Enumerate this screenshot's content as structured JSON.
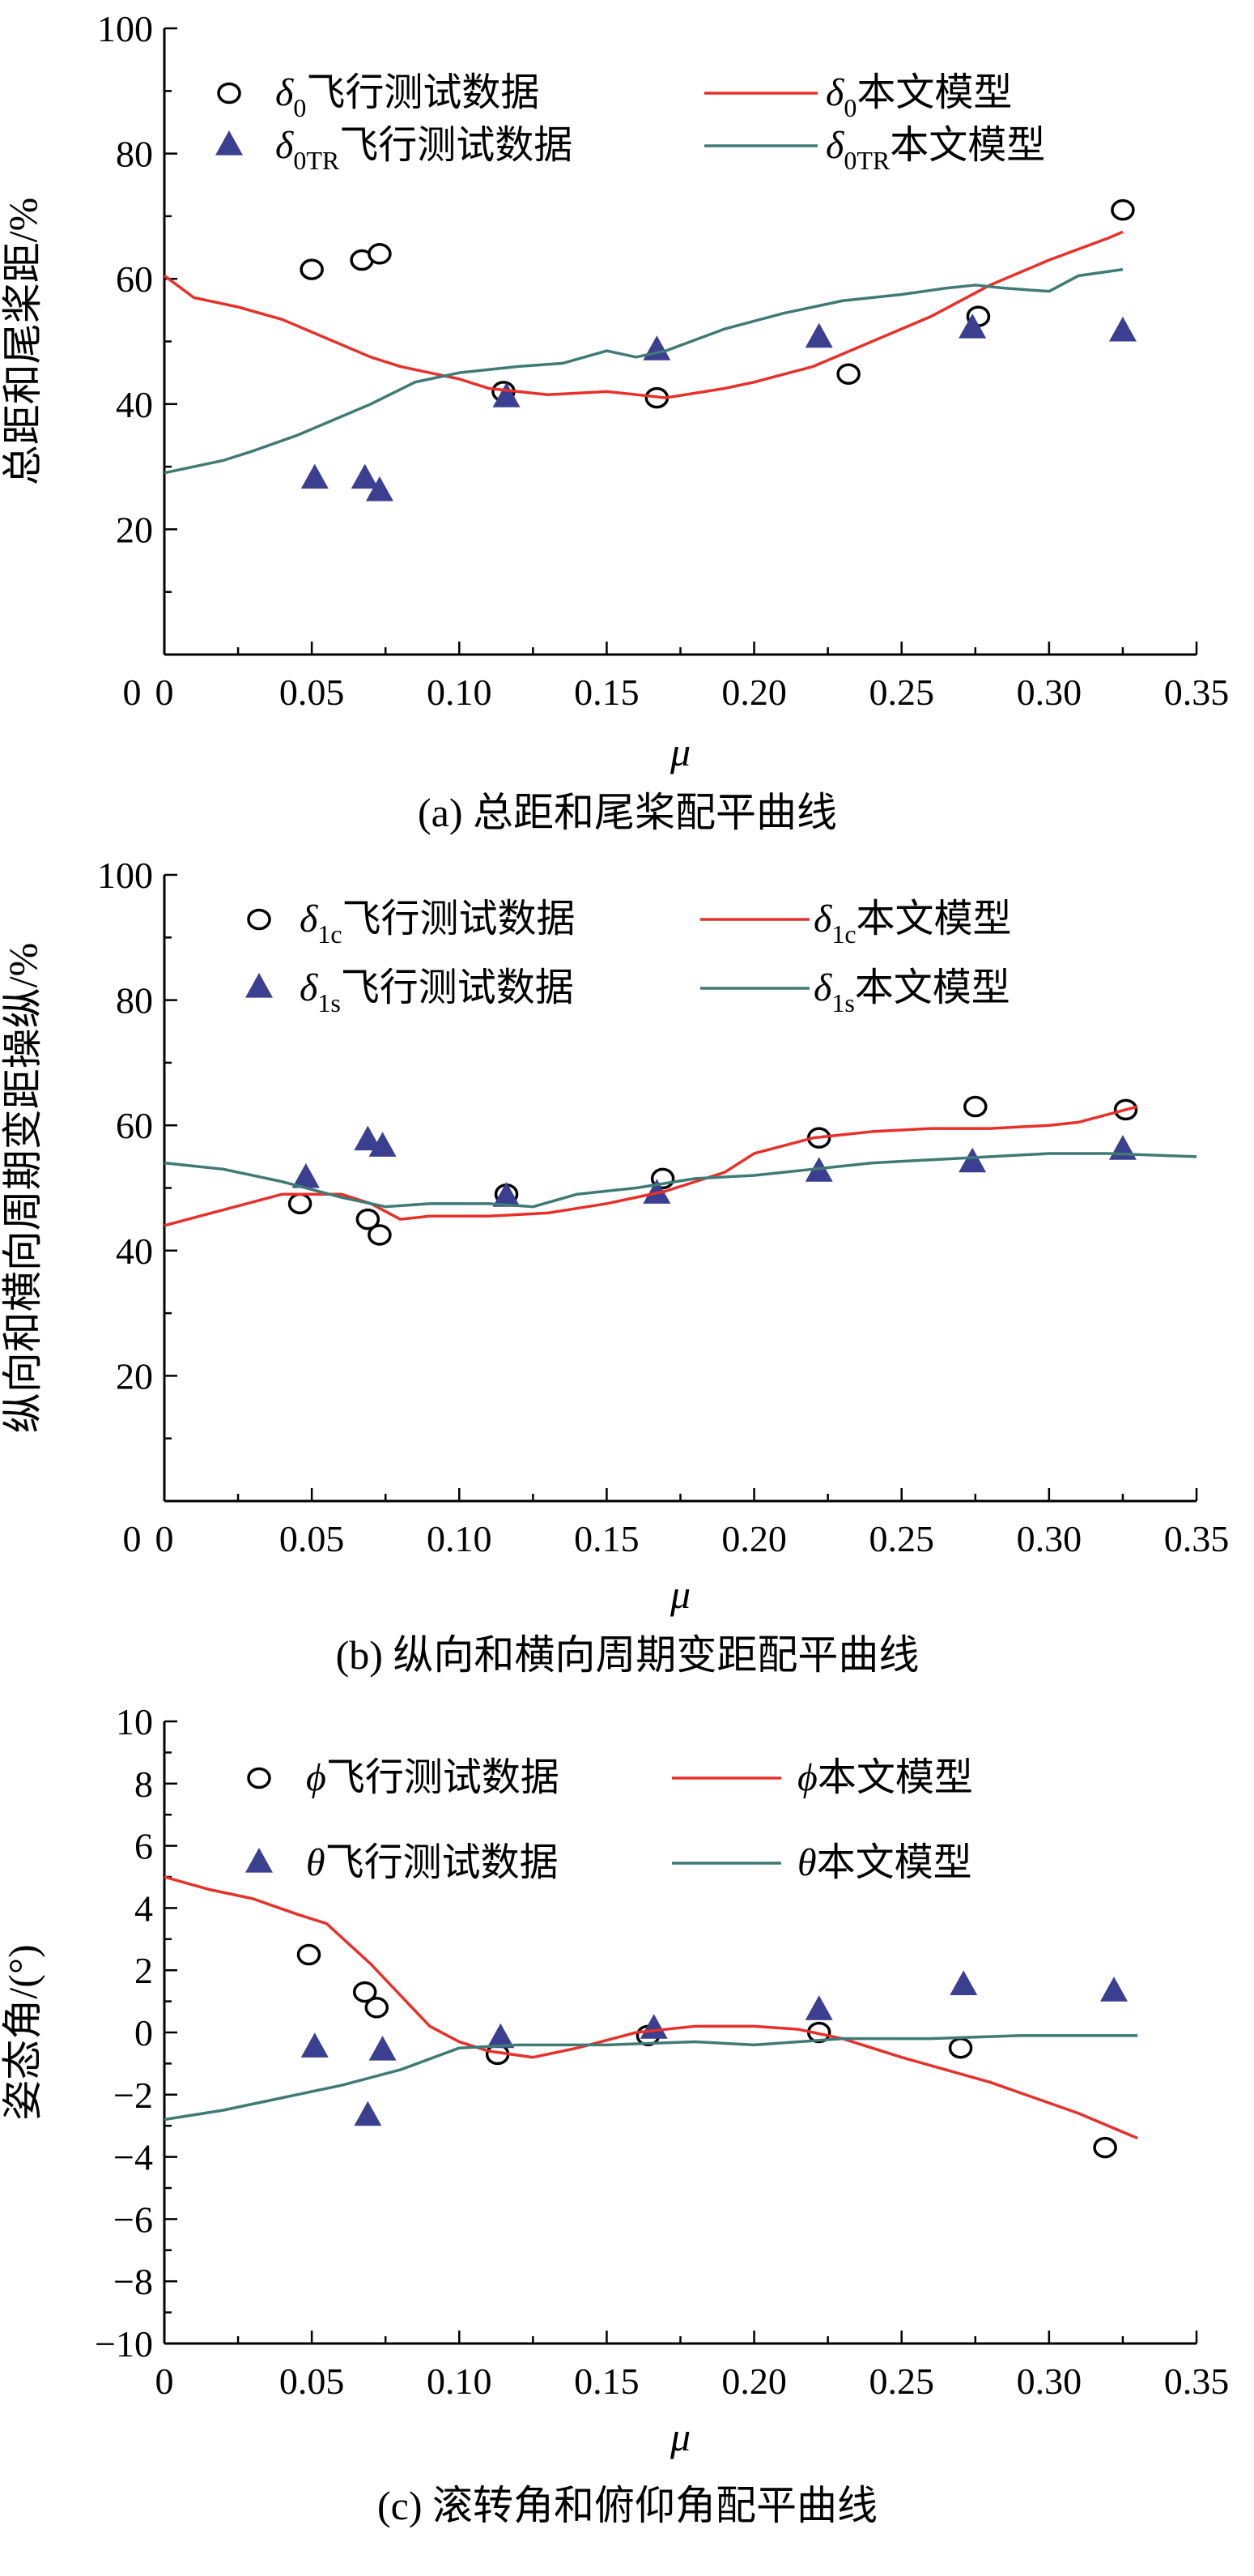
{
  "figure": {
    "series_colors": {
      "flight_marker_circle": "#000000",
      "flight_marker_triangle": "#3b3f8f",
      "model_red": "#e8302a",
      "model_teal": "#3f7a74"
    }
  },
  "chart_data": [
    {
      "id": "a",
      "type": "line",
      "caption": "(a) 总距和尾桨配平曲线",
      "xlabel": "μ",
      "ylabel": "总距和尾桨距/%",
      "xlim": [
        0,
        0.35
      ],
      "ylim": [
        0,
        100
      ],
      "xticks": [
        "0",
        "0.05",
        "0.10",
        "0.15",
        "0.20",
        "0.25",
        "0.30",
        "0.35"
      ],
      "yticks": [
        "20",
        "40",
        "60",
        "80",
        "100"
      ],
      "legend": [
        {
          "symbol": "δ",
          "sub": "0",
          "text": "飞行测试数据",
          "kind": "circle"
        },
        {
          "symbol": "δ",
          "sub": "0",
          "text": "本文模型",
          "kind": "red-line"
        },
        {
          "symbol": "δ",
          "sub": "0TR",
          "text": "飞行测试数据",
          "kind": "triangle"
        },
        {
          "symbol": "δ",
          "sub": "0TR",
          "text": "本文模型",
          "kind": "teal-line"
        }
      ],
      "series": [
        {
          "name": "δ0 飞行测试数据",
          "kind": "circle",
          "x": [
            0.05,
            0.067,
            0.073,
            0.115,
            0.167,
            0.232,
            0.276,
            0.325
          ],
          "y": [
            61.5,
            63.0,
            64.0,
            42.0,
            41.0,
            44.8,
            54.0,
            71.0
          ]
        },
        {
          "name": "δ0TR 飞行测试数据",
          "kind": "triangle",
          "x": [
            0.051,
            0.068,
            0.073,
            0.116,
            0.167,
            0.222,
            0.274,
            0.325
          ],
          "y": [
            28.0,
            28.0,
            26.0,
            41.0,
            48.5,
            50.5,
            52.0,
            51.5
          ]
        },
        {
          "name": "δ0 本文模型",
          "kind": "red-line",
          "x": [
            0.0,
            0.01,
            0.025,
            0.04,
            0.055,
            0.07,
            0.08,
            0.09,
            0.1,
            0.11,
            0.12,
            0.13,
            0.15,
            0.17,
            0.19,
            0.2,
            0.22,
            0.24,
            0.26,
            0.28,
            0.3,
            0.32,
            0.325
          ],
          "y": [
            60.5,
            57.0,
            55.5,
            53.5,
            50.5,
            47.5,
            46.0,
            45.0,
            44.0,
            42.5,
            42.0,
            41.5,
            42.0,
            41.0,
            42.5,
            43.5,
            46.0,
            50.0,
            54.0,
            59.0,
            63.0,
            66.5,
            67.5
          ]
        },
        {
          "name": "δ0TR 本文模型",
          "kind": "teal-line",
          "x": [
            0.0,
            0.01,
            0.02,
            0.03,
            0.045,
            0.06,
            0.07,
            0.085,
            0.1,
            0.11,
            0.12,
            0.135,
            0.15,
            0.16,
            0.17,
            0.19,
            0.21,
            0.23,
            0.25,
            0.265,
            0.275,
            0.285,
            0.3,
            0.31,
            0.325
          ],
          "y": [
            29.0,
            30.0,
            31.0,
            32.5,
            35.0,
            38.0,
            40.0,
            43.5,
            45.0,
            45.5,
            46.0,
            46.5,
            48.5,
            47.5,
            48.5,
            52.0,
            54.5,
            56.5,
            57.5,
            58.5,
            59.0,
            58.5,
            58.0,
            60.5,
            61.5
          ]
        }
      ]
    },
    {
      "id": "b",
      "type": "line",
      "caption": "(b) 纵向和横向周期变距配平曲线",
      "xlabel": "μ",
      "ylabel": "纵向和横向周期变距操纵/%",
      "xlim": [
        0,
        0.35
      ],
      "ylim": [
        0,
        100
      ],
      "xticks": [
        "0",
        "0.05",
        "0.10",
        "0.15",
        "0.20",
        "0.25",
        "0.30",
        "0.35"
      ],
      "yticks": [
        "20",
        "40",
        "60",
        "80",
        "100"
      ],
      "legend": [
        {
          "symbol": "δ",
          "sub": "1c",
          "text": "飞行测试数据",
          "kind": "circle"
        },
        {
          "symbol": "δ",
          "sub": "1c",
          "text": "本文模型",
          "kind": "red-line"
        },
        {
          "symbol": "δ",
          "sub": "1s",
          "text": "飞行测试数据",
          "kind": "triangle"
        },
        {
          "symbol": "δ",
          "sub": "1s",
          "text": "本文模型",
          "kind": "teal-line"
        }
      ],
      "series": [
        {
          "name": "δ1c 飞行测试数据",
          "kind": "circle",
          "x": [
            0.046,
            0.069,
            0.073,
            0.116,
            0.169,
            0.222,
            0.275,
            0.326
          ],
          "y": [
            47.5,
            45.0,
            42.5,
            49.0,
            51.5,
            58.0,
            63.0,
            62.5
          ]
        },
        {
          "name": "δ1s 飞行测试数据",
          "kind": "triangle",
          "x": [
            0.048,
            0.069,
            0.074,
            0.116,
            0.167,
            0.222,
            0.274,
            0.325
          ],
          "y": [
            51.5,
            57.5,
            56.5,
            48.5,
            49.0,
            52.5,
            54.0,
            56.0
          ]
        },
        {
          "name": "δ1c 本文模型",
          "kind": "red-line",
          "x": [
            0.0,
            0.02,
            0.04,
            0.06,
            0.07,
            0.08,
            0.09,
            0.11,
            0.13,
            0.15,
            0.17,
            0.19,
            0.2,
            0.22,
            0.24,
            0.26,
            0.28,
            0.3,
            0.31,
            0.33
          ],
          "y": [
            44.0,
            46.5,
            49.0,
            49.0,
            47.5,
            45.0,
            45.5,
            45.5,
            46.0,
            47.5,
            49.5,
            52.5,
            55.5,
            58.0,
            59.0,
            59.5,
            59.5,
            60.0,
            60.5,
            63.0
          ]
        },
        {
          "name": "δ1s 本文模型",
          "kind": "teal-line",
          "x": [
            0.0,
            0.02,
            0.04,
            0.06,
            0.075,
            0.09,
            0.11,
            0.125,
            0.14,
            0.16,
            0.18,
            0.2,
            0.22,
            0.24,
            0.26,
            0.28,
            0.3,
            0.32,
            0.35
          ],
          "y": [
            54.0,
            53.0,
            51.0,
            48.5,
            47.0,
            47.5,
            47.5,
            47.0,
            49.0,
            50.0,
            51.5,
            52.0,
            53.0,
            54.0,
            54.5,
            55.0,
            55.5,
            55.5,
            55.0
          ]
        }
      ]
    },
    {
      "id": "c",
      "type": "line",
      "caption": "(c) 滚转角和俯仰角配平曲线",
      "xlabel": "μ",
      "ylabel": "姿态角/(°)",
      "xlim": [
        0,
        0.35
      ],
      "ylim": [
        -10,
        10
      ],
      "xticks": [
        "0",
        "0.05",
        "0.10",
        "0.15",
        "0.20",
        "0.25",
        "0.30",
        "0.35"
      ],
      "yticks": [
        "−10",
        "−8",
        "−6",
        "−4",
        "−2",
        "0",
        "2",
        "4",
        "6",
        "8",
        "10"
      ],
      "legend": [
        {
          "symbol": "ϕ",
          "sub": "",
          "text": "飞行测试数据",
          "kind": "circle"
        },
        {
          "symbol": "ϕ",
          "sub": "",
          "text": "本文模型",
          "kind": "red-line"
        },
        {
          "symbol": "θ",
          "sub": "",
          "text": "飞行测试数据",
          "kind": "triangle"
        },
        {
          "symbol": "θ",
          "sub": "",
          "text": "本文模型",
          "kind": "teal-line"
        }
      ],
      "series": [
        {
          "name": "ϕ 飞行测试数据",
          "kind": "circle",
          "x": [
            0.049,
            0.068,
            0.072,
            0.113,
            0.164,
            0.222,
            0.27,
            0.319
          ],
          "y": [
            2.5,
            1.3,
            0.8,
            -0.7,
            -0.1,
            0.0,
            -0.5,
            -3.7
          ]
        },
        {
          "name": "θ 飞行测试数据",
          "kind": "triangle",
          "x": [
            0.051,
            0.069,
            0.074,
            0.114,
            0.166,
            0.222,
            0.271,
            0.322
          ],
          "y": [
            -0.5,
            -2.7,
            -0.6,
            -0.2,
            0.1,
            0.7,
            1.5,
            1.3
          ]
        },
        {
          "name": "ϕ 本文模型",
          "kind": "red-line",
          "x": [
            0.0,
            0.015,
            0.03,
            0.045,
            0.055,
            0.07,
            0.08,
            0.09,
            0.1,
            0.11,
            0.125,
            0.14,
            0.16,
            0.18,
            0.2,
            0.215,
            0.23,
            0.25,
            0.28,
            0.31,
            0.33
          ],
          "y": [
            5.0,
            4.6,
            4.3,
            3.8,
            3.5,
            2.2,
            1.2,
            0.2,
            -0.3,
            -0.6,
            -0.8,
            -0.5,
            0.0,
            0.2,
            0.2,
            0.1,
            -0.2,
            -0.8,
            -1.6,
            -2.6,
            -3.4
          ]
        },
        {
          "name": "θ 本文模型",
          "kind": "teal-line",
          "x": [
            0.0,
            0.02,
            0.04,
            0.06,
            0.08,
            0.1,
            0.12,
            0.15,
            0.18,
            0.2,
            0.23,
            0.26,
            0.29,
            0.33
          ],
          "y": [
            -2.8,
            -2.5,
            -2.1,
            -1.7,
            -1.2,
            -0.5,
            -0.4,
            -0.4,
            -0.3,
            -0.4,
            -0.2,
            -0.2,
            -0.1,
            -0.1
          ]
        }
      ]
    }
  ]
}
